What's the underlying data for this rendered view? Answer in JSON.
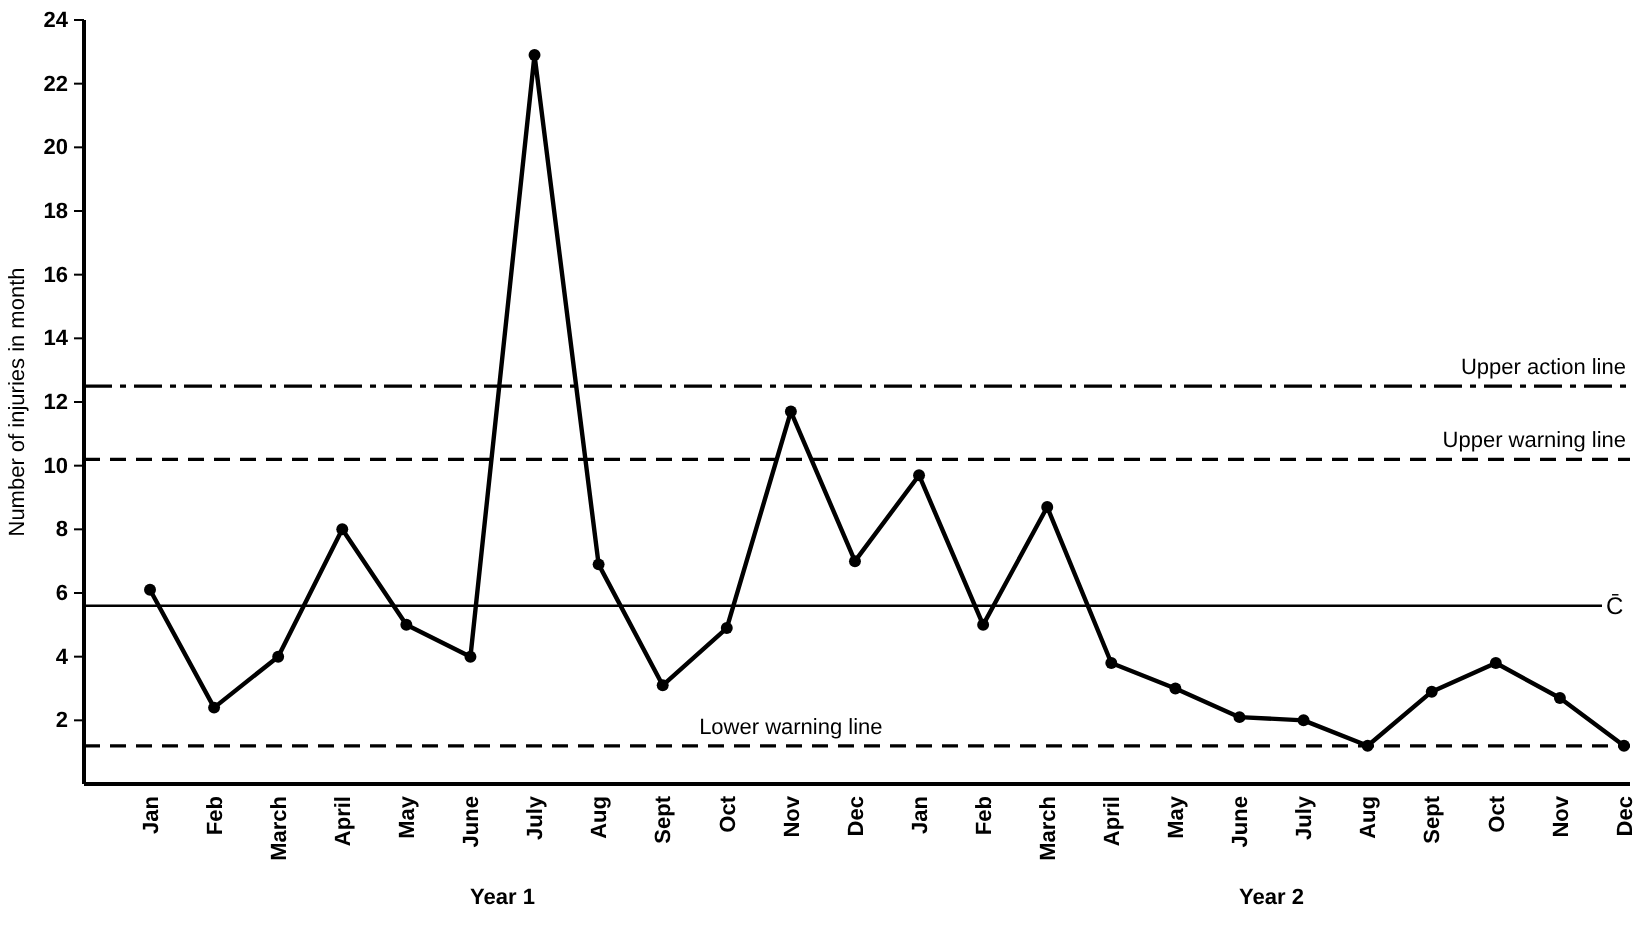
{
  "chart_data": {
    "type": "line",
    "ylabel": "Number of injuries in month",
    "categories": [
      "Jan",
      "Feb",
      "March",
      "April",
      "May",
      "June",
      "July",
      "Aug",
      "Sept",
      "Oct",
      "Nov",
      "Dec",
      "Jan",
      "Feb",
      "March",
      "April",
      "May",
      "June",
      "July",
      "Aug",
      "Sept",
      "Oct",
      "Nov",
      "Dec"
    ],
    "series": [
      {
        "color": "#000000",
        "values": [
          6.1,
          2.4,
          4,
          8,
          5,
          4,
          22.9,
          6.9,
          3.1,
          4.9,
          11.7,
          7,
          9.7,
          5,
          8.7,
          3.8,
          3,
          2.1,
          2,
          1.2,
          2.9,
          3.8,
          2.7,
          1.2
        ]
      }
    ],
    "ylim": [
      0,
      24
    ],
    "yticks": [
      2,
      4,
      6,
      8,
      10,
      12,
      14,
      16,
      18,
      20,
      22,
      24
    ],
    "ref_lines": [
      {
        "axis": "y",
        "value": 12.5,
        "label": "Upper action line",
        "line_style": "dashdot"
      },
      {
        "axis": "y",
        "value": 10.2,
        "label": "Upper warning line",
        "line_style": "dashed"
      },
      {
        "axis": "y",
        "value": 5.6,
        "label": "C̄",
        "line_style": "solid"
      },
      {
        "axis": "y",
        "value": 1.2,
        "label": "Lower warning line",
        "line_style": "dashed"
      }
    ],
    "annotations": [
      "Year 1",
      "Year 2"
    ],
    "marker": "circle",
    "line_style": "solid",
    "grid": false
  }
}
